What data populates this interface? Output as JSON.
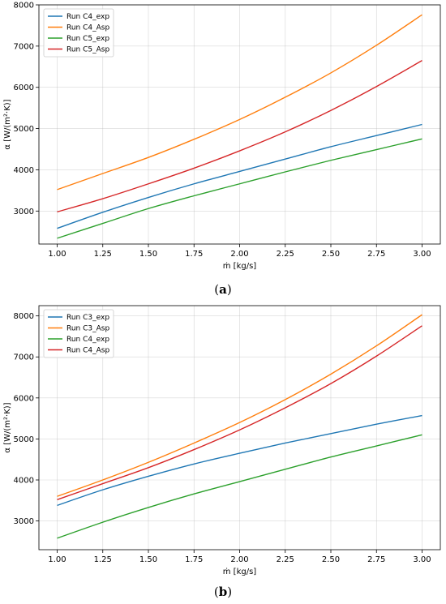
{
  "chart_data": [
    {
      "type": "line",
      "panel_label": "a",
      "xlabel": "ṁ [kg/s]",
      "ylabel": "α [W/(m²·K)]",
      "xlim": [
        0.9,
        3.1
      ],
      "ylim": [
        2200,
        8000
      ],
      "xticks": [
        "1.00",
        "1.25",
        "1.50",
        "1.75",
        "2.00",
        "2.25",
        "2.50",
        "2.75",
        "3.00"
      ],
      "yticks": [
        "3000",
        "4000",
        "5000",
        "6000",
        "7000",
        "8000"
      ],
      "grid": true,
      "legend_position": "top-left",
      "x": [
        1.0,
        1.25,
        1.5,
        1.75,
        2.0,
        2.25,
        2.5,
        2.75,
        3.0
      ],
      "series": [
        {
          "name": "Run C4_exp",
          "color": "#1f77b4",
          "values": [
            2580,
            2970,
            3330,
            3660,
            3960,
            4260,
            4560,
            4830,
            5100
          ]
        },
        {
          "name": "Run C4_Asp",
          "color": "#ff7f0e",
          "values": [
            3520,
            3910,
            4300,
            4740,
            5220,
            5760,
            6350,
            7020,
            7760
          ]
        },
        {
          "name": "Run C5_exp",
          "color": "#2ca02c",
          "values": [
            2340,
            2700,
            3060,
            3370,
            3660,
            3950,
            4230,
            4490,
            4750
          ]
        },
        {
          "name": "Run C5_Asp",
          "color": "#d62728",
          "values": [
            2980,
            3300,
            3660,
            4040,
            4460,
            4920,
            5440,
            6020,
            6650
          ]
        }
      ]
    },
    {
      "type": "line",
      "panel_label": "b",
      "xlabel": "ṁ [kg/s]",
      "ylabel": "α [W/(m²·K)]",
      "xlim": [
        0.9,
        3.1
      ],
      "ylim": [
        2300,
        8250
      ],
      "xticks": [
        "1.00",
        "1.25",
        "1.50",
        "1.75",
        "2.00",
        "2.25",
        "2.50",
        "2.75",
        "3.00"
      ],
      "yticks": [
        "3000",
        "4000",
        "5000",
        "6000",
        "7000",
        "8000"
      ],
      "grid": true,
      "legend_position": "top-left",
      "x": [
        1.0,
        1.25,
        1.5,
        1.75,
        2.0,
        2.25,
        2.5,
        2.75,
        3.0
      ],
      "series": [
        {
          "name": "Run C3_exp",
          "color": "#1f77b4",
          "values": [
            3380,
            3760,
            4090,
            4390,
            4650,
            4900,
            5130,
            5360,
            5570
          ]
        },
        {
          "name": "Run C3_Asp",
          "color": "#ff7f0e",
          "values": [
            3600,
            4000,
            4430,
            4900,
            5400,
            5960,
            6580,
            7270,
            8030
          ]
        },
        {
          "name": "Run C4_exp",
          "color": "#2ca02c",
          "values": [
            2580,
            2970,
            3330,
            3660,
            3960,
            4260,
            4560,
            4830,
            5100
          ]
        },
        {
          "name": "Run C4_Asp",
          "color": "#d62728",
          "values": [
            3520,
            3910,
            4300,
            4740,
            5220,
            5760,
            6350,
            7020,
            7760
          ]
        }
      ]
    }
  ]
}
